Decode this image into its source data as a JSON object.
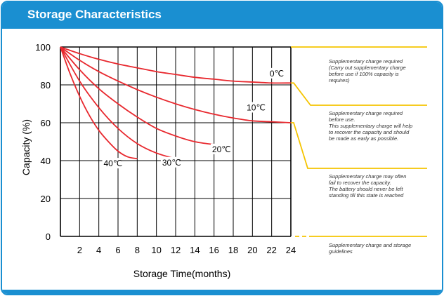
{
  "header": {
    "title": "Storage Characteristics"
  },
  "colors": {
    "accent": "#1a8fd1",
    "curve": "#e8282e",
    "zone_line": "#f5c400",
    "grid": "#000000"
  },
  "chart_data": {
    "type": "line",
    "title": "",
    "xlabel": "Storage Time(months)",
    "ylabel": "Capacity (%)",
    "xlim": [
      0,
      24
    ],
    "ylim": [
      0,
      100
    ],
    "x_ticks": [
      "2",
      "4",
      "6",
      "8",
      "10",
      "12",
      "14",
      "16",
      "18",
      "20",
      "22",
      "24"
    ],
    "y_ticks": [
      "100",
      "80",
      "60",
      "40",
      "20",
      "0"
    ],
    "grid": true,
    "series": [
      {
        "name": "0℃",
        "x": [
          0,
          2,
          4,
          6,
          8,
          10,
          12,
          14,
          16,
          18,
          20,
          22,
          24
        ],
        "y": [
          100,
          96.5,
          93.5,
          91,
          89,
          87,
          85.5,
          84,
          83,
          82,
          81.5,
          81,
          81
        ]
      },
      {
        "name": "10℃",
        "x": [
          0,
          2,
          4,
          6,
          8,
          10,
          12,
          14,
          16,
          18,
          20,
          22,
          24
        ],
        "y": [
          100,
          93,
          87,
          82,
          77.5,
          73.5,
          70,
          67,
          64.5,
          62.5,
          61,
          60.5,
          60
        ]
      },
      {
        "name": "20℃",
        "x": [
          0,
          2,
          4,
          6,
          8,
          10,
          12,
          14,
          16,
          17
        ],
        "y": [
          100,
          88,
          78,
          70,
          63,
          57,
          53,
          50,
          48.5,
          48
        ]
      },
      {
        "name": "30℃",
        "x": [
          0,
          2,
          4,
          6,
          8,
          10,
          12
        ],
        "y": [
          100,
          82,
          68,
          57,
          49,
          44,
          41
        ]
      },
      {
        "name": "40℃",
        "x": [
          0,
          1,
          2,
          3,
          4,
          5,
          6,
          7,
          8
        ],
        "y": [
          100,
          86,
          74,
          64,
          56,
          50,
          45,
          42,
          41
        ]
      }
    ],
    "zones": [
      {
        "text": "Supplementary charge required\n(Carry out supplementary charge\nbefore use if 100% capacity is\nrequires)"
      },
      {
        "text": "Supplementary charge required\nbefore use.\nThis supplementary charge will help\nto recover the capacity and should\nbe made  as early as possible."
      },
      {
        "text": "Supplementary charge may often\nfail to recover the capacity.\nThe battery should never be left\nstanding till this state is reached"
      },
      {
        "text": "Supplementary charge and storage\nguidelines"
      }
    ]
  }
}
